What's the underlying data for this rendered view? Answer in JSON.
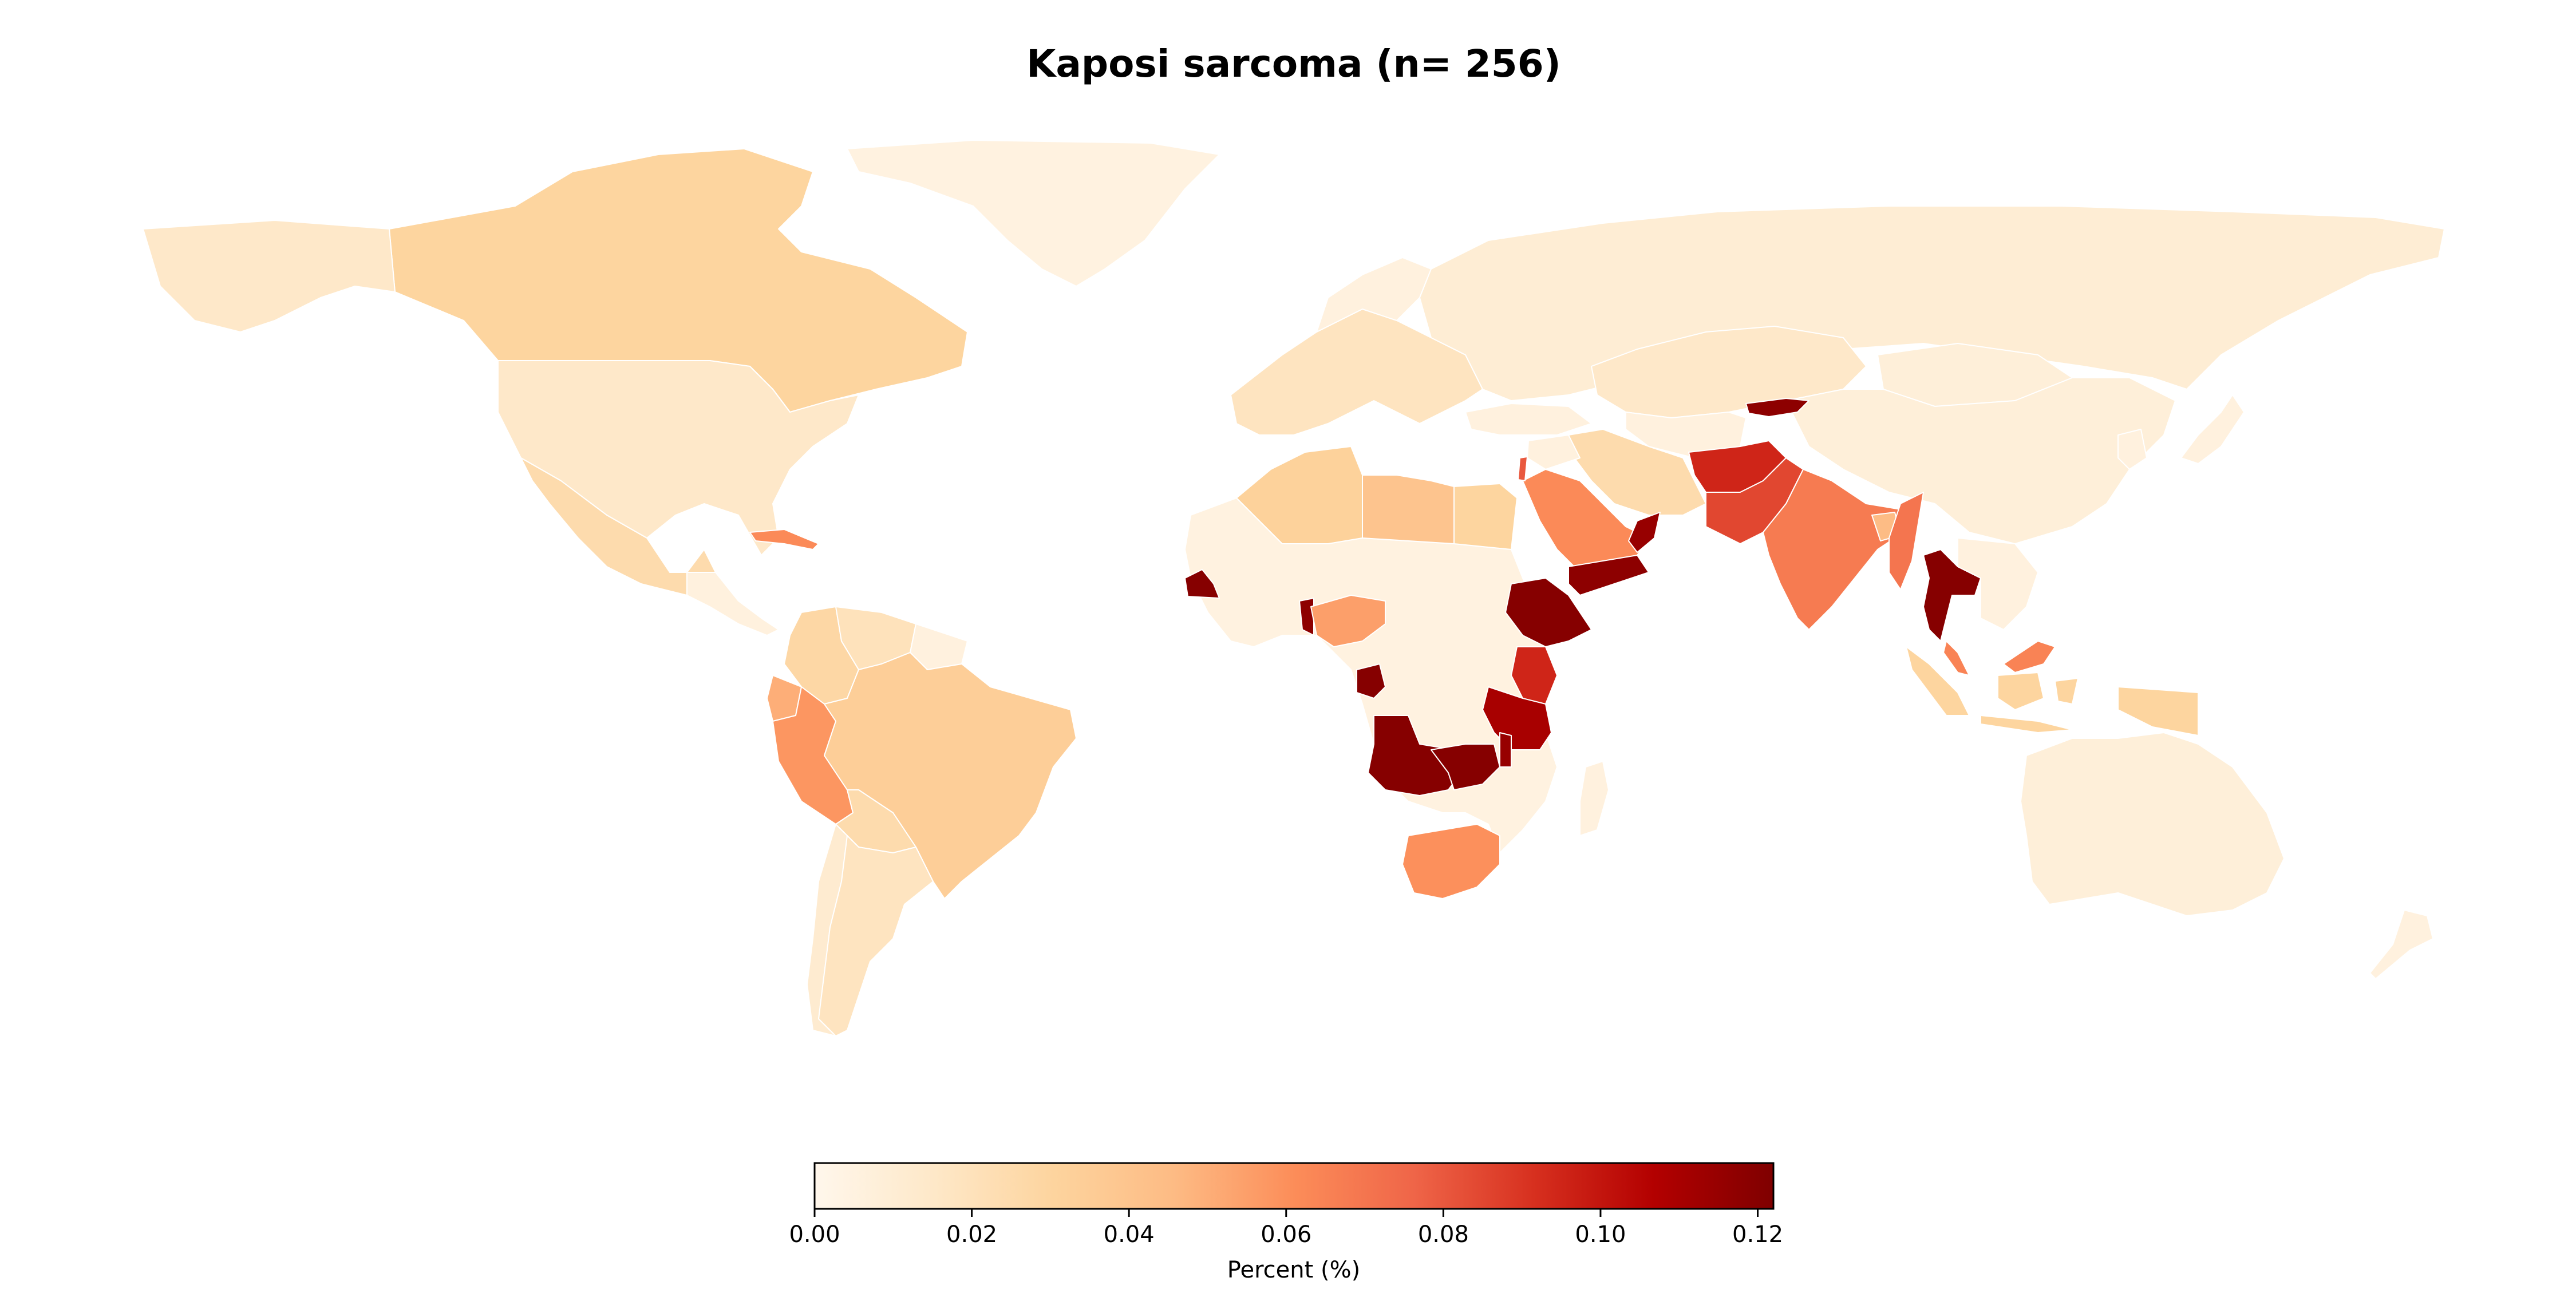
{
  "chart_data": {
    "type": "choropleth",
    "title": "Kaposi sarcoma (n= 256)",
    "colorbar": {
      "label": "Percent (%)",
      "min": 0.0,
      "max": 0.122,
      "ticks": [
        "0.00",
        "0.02",
        "0.04",
        "0.06",
        "0.08",
        "0.10",
        "0.12"
      ],
      "tick_values": [
        0.0,
        0.02,
        0.04,
        0.06,
        0.08,
        0.1,
        0.12
      ],
      "colormap": "OrRd",
      "orientation": "horizontal",
      "placement": "bottom-center"
    },
    "regions": [
      {
        "name": "Canada",
        "value": 0.03
      },
      {
        "name": "United States",
        "value": 0.015
      },
      {
        "name": "Mexico",
        "value": 0.025
      },
      {
        "name": "Cuba",
        "value": 0.062
      },
      {
        "name": "Colombia",
        "value": 0.028
      },
      {
        "name": "Venezuela",
        "value": 0.02
      },
      {
        "name": "Peru",
        "value": 0.058
      },
      {
        "name": "Ecuador",
        "value": 0.05
      },
      {
        "name": "Brazil",
        "value": 0.034
      },
      {
        "name": "Bolivia",
        "value": 0.025
      },
      {
        "name": "Argentina",
        "value": 0.018
      },
      {
        "name": "Chile",
        "value": 0.012
      },
      {
        "name": "Greenland",
        "value": 0.005
      },
      {
        "name": "Algeria",
        "value": 0.032
      },
      {
        "name": "Libya",
        "value": 0.04
      },
      {
        "name": "Egypt",
        "value": 0.03
      },
      {
        "name": "Nigeria",
        "value": 0.055
      },
      {
        "name": "Senegal",
        "value": 0.12
      },
      {
        "name": "Liberia",
        "value": 0.118
      },
      {
        "name": "Cameroon",
        "value": 0.015
      },
      {
        "name": "Congo",
        "value": 0.12
      },
      {
        "name": "Angola",
        "value": 0.12
      },
      {
        "name": "Zambia",
        "value": 0.12
      },
      {
        "name": "Malawi",
        "value": 0.115
      },
      {
        "name": "Tanzania",
        "value": 0.11
      },
      {
        "name": "Kenya",
        "value": 0.095
      },
      {
        "name": "Ethiopia",
        "value": 0.12
      },
      {
        "name": "South Africa",
        "value": 0.06
      },
      {
        "name": "Saudi Arabia",
        "value": 0.062
      },
      {
        "name": "Yemen",
        "value": 0.118
      },
      {
        "name": "Oman",
        "value": 0.115
      },
      {
        "name": "Israel",
        "value": 0.08
      },
      {
        "name": "Iran",
        "value": 0.025
      },
      {
        "name": "Afghanistan",
        "value": 0.095
      },
      {
        "name": "Pakistan",
        "value": 0.085
      },
      {
        "name": "India",
        "value": 0.068
      },
      {
        "name": "Bangladesh",
        "value": 0.045
      },
      {
        "name": "Myanmar",
        "value": 0.07
      },
      {
        "name": "Thailand",
        "value": 0.12
      },
      {
        "name": "Malaysia",
        "value": 0.065
      },
      {
        "name": "Indonesia",
        "value": 0.03
      },
      {
        "name": "Kyrgyzstan",
        "value": 0.118
      },
      {
        "name": "Russia",
        "value": 0.01
      },
      {
        "name": "Kazakhstan",
        "value": 0.015
      },
      {
        "name": "China",
        "value": 0.008
      },
      {
        "name": "Mongolia",
        "value": 0.008
      },
      {
        "name": "Australia",
        "value": 0.008
      },
      {
        "name": "Estonia",
        "value": 0.12
      },
      {
        "name": "Western Europe",
        "value": 0.018
      },
      {
        "name": "West/Central Africa",
        "value": 0.005
      }
    ]
  }
}
